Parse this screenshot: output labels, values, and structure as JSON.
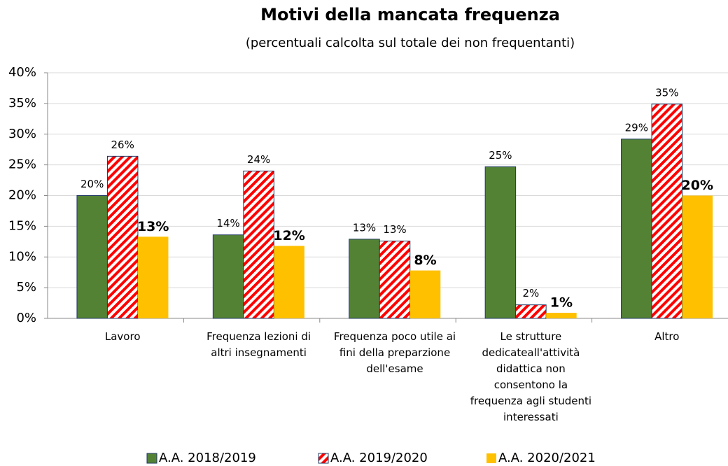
{
  "chart_data": {
    "type": "bar",
    "title": "Motivi della mancata frequenza",
    "subtitle": "(percentuali calcolta sul totale dei non frequentanti)",
    "categories": [
      "Lavoro",
      "Frequenza lezioni di altri insegnamenti",
      "Frequenza poco utile ai fini della preparzione dell'esame",
      "Le strutture dedicateall'attività didattica non consentono la frequenza agli studenti interessati",
      "Altro"
    ],
    "series": [
      {
        "name": "A.A. 2018/2019",
        "color": "#548235",
        "values": [
          20.0,
          13.6,
          12.9,
          24.7,
          29.2
        ],
        "value_labels": [
          "20%",
          "14%",
          "13%",
          "25%",
          "29%"
        ]
      },
      {
        "name": "A.A. 2019/2020",
        "color": "#ff0000",
        "hatch": true,
        "values": [
          26.4,
          24.0,
          12.6,
          2.2,
          34.9
        ],
        "value_labels": [
          "26%",
          "24%",
          "13%",
          "2%",
          "35%"
        ]
      },
      {
        "name": "A.A. 2020/2021",
        "color": "#ffc000",
        "bold_labels": true,
        "values": [
          13.3,
          11.8,
          7.8,
          0.9,
          20.0
        ],
        "value_labels": [
          "13%",
          "12%",
          "8%",
          "1%",
          "20%"
        ]
      }
    ],
    "ylim": [
      0,
      40
    ],
    "yticks": [
      {
        "value": 0,
        "label": "0%"
      },
      {
        "value": 5,
        "label": "5%"
      },
      {
        "value": 10,
        "label": "10%"
      },
      {
        "value": 15,
        "label": "15%"
      },
      {
        "value": 20,
        "label": "20%"
      },
      {
        "value": 25,
        "label": "25%"
      },
      {
        "value": 30,
        "label": "30%"
      },
      {
        "value": 35,
        "label": "35%"
      },
      {
        "value": 40,
        "label": "40%"
      }
    ],
    "grid": true,
    "legend": "bottom"
  }
}
